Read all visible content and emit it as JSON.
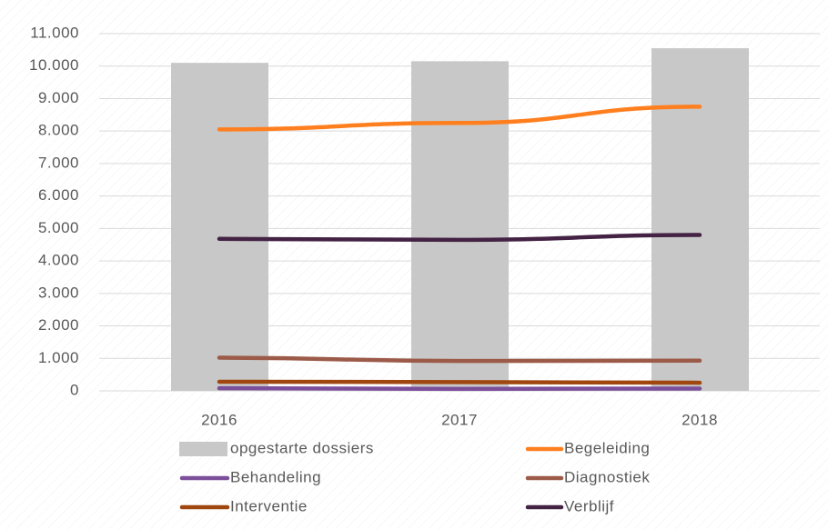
{
  "chart_data": {
    "type": "combo",
    "categories": [
      "2016",
      "2017",
      "2018"
    ],
    "series": [
      {
        "name": "opgestarte dossiers",
        "type": "bar",
        "color": "#c8c8c8",
        "values": [
          10100,
          10150,
          10550
        ]
      },
      {
        "name": "Begeleiding",
        "type": "line",
        "color": "#ff7f1f",
        "values": [
          8050,
          8250,
          8750
        ]
      },
      {
        "name": "Behandeling",
        "type": "line",
        "color": "#7b4f9a",
        "values": [
          80,
          60,
          70
        ]
      },
      {
        "name": "Diagnostiek",
        "type": "line",
        "color": "#9c5a48",
        "values": [
          1020,
          920,
          930
        ]
      },
      {
        "name": "Interventie",
        "type": "line",
        "color": "#a0460f",
        "values": [
          280,
          270,
          250
        ]
      },
      {
        "name": "Verblijf",
        "type": "line",
        "color": "#432244",
        "values": [
          4680,
          4650,
          4800
        ]
      }
    ],
    "ylim": [
      0,
      11000
    ],
    "yticks": [
      0,
      {
        "value": 1000,
        "label": "1.000"
      },
      {
        "value": 2000,
        "label": "2.000"
      },
      {
        "value": 3000,
        "label": "3.000"
      },
      {
        "value": 4000,
        "label": "4.000"
      },
      {
        "value": 5000,
        "label": "5.000"
      },
      {
        "value": 6000,
        "label": "6.000"
      },
      {
        "value": 7000,
        "label": "7.000"
      },
      {
        "value": 8000,
        "label": "8.000"
      },
      {
        "value": 9000,
        "label": "9.000"
      },
      {
        "value": 10000,
        "label": "10.000"
      },
      {
        "value": 11000,
        "label": "11.000"
      }
    ],
    "grid": true
  }
}
